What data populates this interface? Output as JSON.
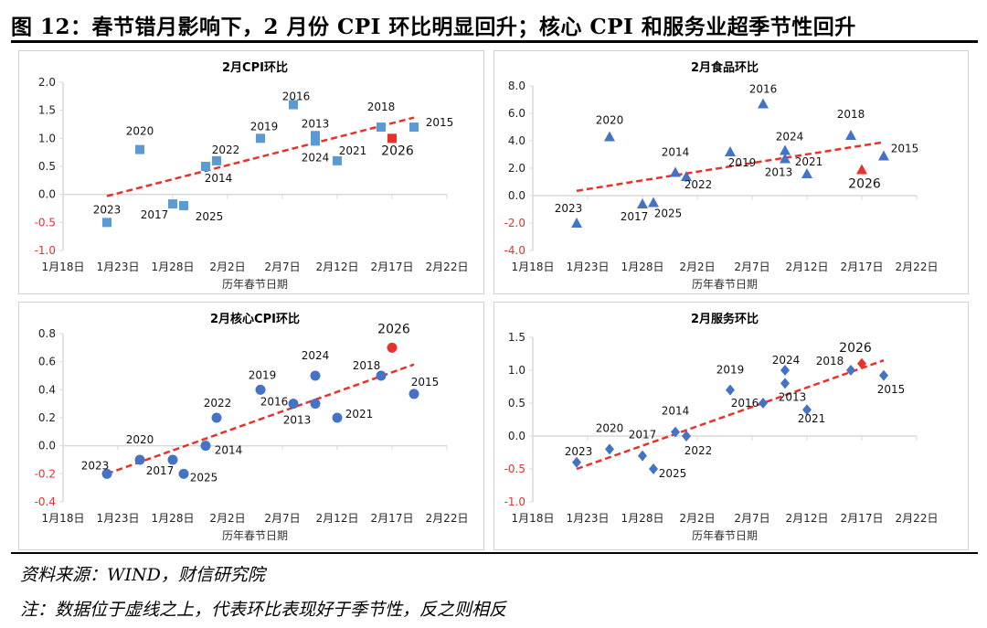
{
  "figure_title": "图 12：春节错月影响下，2 月份 CPI 环比明显回升；核心 CPI 和服务业超季节性回升",
  "source": "资料来源：WIND，财信研究院",
  "note": "注：数据位于虚线之上，代表环比表现好于季节性，反之则相反",
  "colors": {
    "marker_cpi": "#5b9bd5",
    "marker_blue": "#4472c4",
    "highlight": "#e8312b",
    "trend": "#e8312b",
    "negative_tick": "#e8312b"
  },
  "chart_data": [
    {
      "type": "scatter",
      "title": "2月CPI环比",
      "xlabel": "历年春节日期",
      "ylabel": "",
      "marker": "square",
      "marker_color": "#5b9bd5",
      "xticks": [
        "1月18日",
        "1月23日",
        "1月28日",
        "2月2日",
        "2月7日",
        "2月12日",
        "2月17日",
        "2月22日"
      ],
      "xlim": [
        "1-18",
        "2-22"
      ],
      "ylim": [
        -1.0,
        2.0
      ],
      "ystep": 0.5,
      "ydecimals": 1,
      "grid": false,
      "points": [
        {
          "label": "2013",
          "x": "2-10",
          "y": 1.05
        },
        {
          "label": "2014",
          "x": "1-31",
          "y": 0.5
        },
        {
          "label": "2015",
          "x": "2-19",
          "y": 1.2
        },
        {
          "label": "2016",
          "x": "2-8",
          "y": 1.6
        },
        {
          "label": "2017",
          "x": "1-28",
          "y": -0.17
        },
        {
          "label": "2018",
          "x": "2-16",
          "y": 1.2
        },
        {
          "label": "2019",
          "x": "2-5",
          "y": 1.0
        },
        {
          "label": "2020",
          "x": "1-25",
          "y": 0.8
        },
        {
          "label": "2021",
          "x": "2-12",
          "y": 0.6
        },
        {
          "label": "2022",
          "x": "2-1",
          "y": 0.6
        },
        {
          "label": "2023",
          "x": "1-22",
          "y": -0.5
        },
        {
          "label": "2024",
          "x": "2-10",
          "y": 0.95
        },
        {
          "label": "2025",
          "x": "1-29",
          "y": -0.2
        },
        {
          "label": "2026",
          "x": "2-17",
          "y": 1.0,
          "highlight": true
        }
      ],
      "trendline": {
        "style": "dashed",
        "from": {
          "x": "1-22",
          "y": -0.03
        },
        "to": {
          "x": "2-19",
          "y": 1.37
        }
      }
    },
    {
      "type": "scatter",
      "title": "2月食品环比",
      "xlabel": "历年春节日期",
      "ylabel": "",
      "marker": "triangle",
      "marker_color": "#4472c4",
      "xticks": [
        "1月18日",
        "1月23日",
        "1月28日",
        "2月2日",
        "2月7日",
        "2月12日",
        "2月17日",
        "2月22日"
      ],
      "xlim": [
        "1-18",
        "2-22"
      ],
      "ylim": [
        -4.0,
        8.0
      ],
      "ystep": 2.0,
      "ydecimals": 1,
      "grid": false,
      "points": [
        {
          "label": "2013",
          "x": "2-10",
          "y": 2.7
        },
        {
          "label": "2014",
          "x": "1-31",
          "y": 1.7
        },
        {
          "label": "2015",
          "x": "2-19",
          "y": 2.9
        },
        {
          "label": "2016",
          "x": "2-8",
          "y": 6.7
        },
        {
          "label": "2017",
          "x": "1-28",
          "y": -0.6
        },
        {
          "label": "2018",
          "x": "2-16",
          "y": 4.4
        },
        {
          "label": "2019",
          "x": "2-5",
          "y": 3.2
        },
        {
          "label": "2020",
          "x": "1-25",
          "y": 4.3
        },
        {
          "label": "2021",
          "x": "2-12",
          "y": 1.6
        },
        {
          "label": "2022",
          "x": "2-1",
          "y": 1.4
        },
        {
          "label": "2023",
          "x": "1-22",
          "y": -2.0
        },
        {
          "label": "2024",
          "x": "2-10",
          "y": 3.3
        },
        {
          "label": "2025",
          "x": "1-29",
          "y": -0.5
        },
        {
          "label": "2026",
          "x": "2-17",
          "y": 1.9,
          "highlight": true
        }
      ],
      "trendline": {
        "style": "dashed",
        "from": {
          "x": "1-22",
          "y": 0.35
        },
        "to": {
          "x": "2-19",
          "y": 3.9
        }
      }
    },
    {
      "type": "scatter",
      "title": "2月核心CPI环比",
      "xlabel": "历年春节日期",
      "ylabel": "",
      "marker": "circle",
      "marker_color": "#4472c4",
      "xticks": [
        "1月18日",
        "1月23日",
        "1月28日",
        "2月2日",
        "2月7日",
        "2月12日",
        "2月17日",
        "2月22日"
      ],
      "xlim": [
        "1-18",
        "2-22"
      ],
      "ylim": [
        -0.4,
        0.8
      ],
      "ystep": 0.2,
      "ydecimals": 1,
      "grid": false,
      "points": [
        {
          "label": "2013",
          "x": "2-10",
          "y": 0.3
        },
        {
          "label": "2014",
          "x": "1-31",
          "y": 0.0
        },
        {
          "label": "2015",
          "x": "2-19",
          "y": 0.37
        },
        {
          "label": "2016",
          "x": "2-8",
          "y": 0.3
        },
        {
          "label": "2017",
          "x": "1-28",
          "y": -0.1
        },
        {
          "label": "2018",
          "x": "2-16",
          "y": 0.5
        },
        {
          "label": "2019",
          "x": "2-5",
          "y": 0.4
        },
        {
          "label": "2020",
          "x": "1-25",
          "y": -0.1
        },
        {
          "label": "2021",
          "x": "2-12",
          "y": 0.2
        },
        {
          "label": "2022",
          "x": "2-1",
          "y": 0.2
        },
        {
          "label": "2023",
          "x": "1-22",
          "y": -0.2
        },
        {
          "label": "2024",
          "x": "2-10",
          "y": 0.5
        },
        {
          "label": "2025",
          "x": "1-29",
          "y": -0.2
        },
        {
          "label": "2026",
          "x": "2-17",
          "y": 0.7,
          "highlight": true
        }
      ],
      "trendline": {
        "style": "dashed",
        "from": {
          "x": "1-22",
          "y": -0.2
        },
        "to": {
          "x": "2-19",
          "y": 0.58
        }
      }
    },
    {
      "type": "scatter",
      "title": "2月服务环比",
      "xlabel": "历年春节日期",
      "ylabel": "",
      "marker": "diamond",
      "marker_color": "#4472c4",
      "xticks": [
        "1月18日",
        "1月23日",
        "1月28日",
        "2月2日",
        "2月7日",
        "2月12日",
        "2月17日",
        "2月22日"
      ],
      "xlim": [
        "1-18",
        "2-22"
      ],
      "ylim": [
        -1.0,
        1.5
      ],
      "ystep": 0.5,
      "ydecimals": 1,
      "grid": false,
      "points": [
        {
          "label": "2013",
          "x": "2-10",
          "y": 0.8
        },
        {
          "label": "2014",
          "x": "1-31",
          "y": 0.06
        },
        {
          "label": "2015",
          "x": "2-19",
          "y": 0.92
        },
        {
          "label": "2016",
          "x": "2-8",
          "y": 0.5
        },
        {
          "label": "2017",
          "x": "1-28",
          "y": -0.3
        },
        {
          "label": "2018",
          "x": "2-16",
          "y": 1.0
        },
        {
          "label": "2019",
          "x": "2-5",
          "y": 0.7
        },
        {
          "label": "2020",
          "x": "1-25",
          "y": -0.2
        },
        {
          "label": "2021",
          "x": "2-12",
          "y": 0.4
        },
        {
          "label": "2022",
          "x": "2-1",
          "y": 0.0
        },
        {
          "label": "2023",
          "x": "1-22",
          "y": -0.4
        },
        {
          "label": "2024",
          "x": "2-10",
          "y": 1.0
        },
        {
          "label": "2025",
          "x": "1-29",
          "y": -0.5
        },
        {
          "label": "2026",
          "x": "2-17",
          "y": 1.1,
          "highlight": true
        }
      ],
      "trendline": {
        "style": "dashed",
        "from": {
          "x": "1-22",
          "y": -0.5
        },
        "to": {
          "x": "2-19",
          "y": 1.15
        }
      }
    }
  ]
}
